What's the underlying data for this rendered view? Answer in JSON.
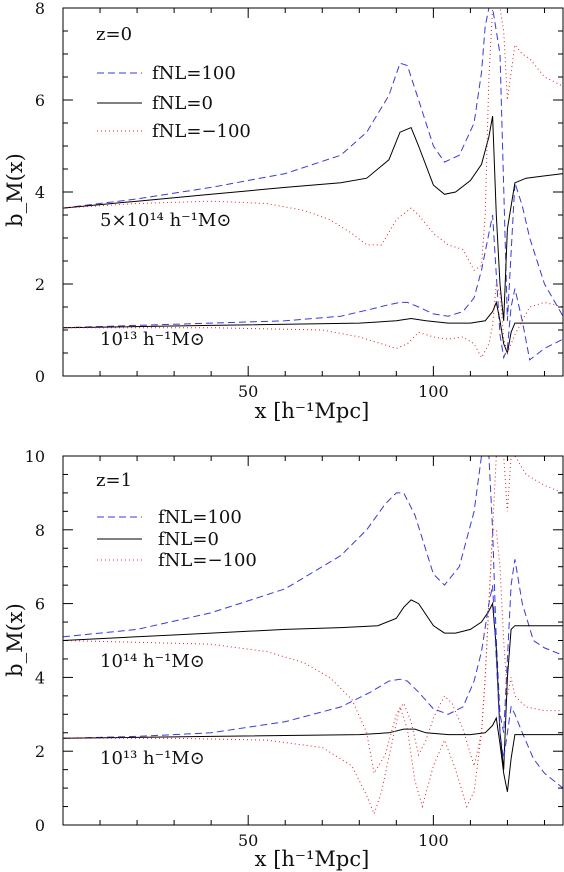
{
  "colors": {
    "fNL_pos100": "#3a3ad8",
    "fNL_0": "#000000",
    "fNL_neg100": "#e02020"
  },
  "chart_data": [
    {
      "type": "line",
      "panel_label": "z=0",
      "xlabel": "x [h⁻¹Mpc]",
      "ylabel": "b_M(x)",
      "xlim": [
        0,
        135
      ],
      "ylim": [
        0,
        8
      ],
      "xticks": [
        50,
        100
      ],
      "yticks": [
        0,
        2,
        4,
        6,
        8
      ],
      "legend": [
        "fNL=100",
        "fNL=0",
        "fNL=−100"
      ],
      "mass_labels": [
        "5×10¹⁴ h⁻¹M⊙",
        "10¹³ h⁻¹M⊙"
      ],
      "series": [
        {
          "name": "fNL=100",
          "mass": "5×10¹⁴ h⁻¹M⊙",
          "style": "dashed",
          "x": [
            0,
            20,
            40,
            60,
            75,
            82,
            88,
            91,
            93,
            96,
            100,
            103,
            107,
            111,
            113,
            114,
            115,
            115.5,
            116,
            118,
            120,
            122,
            124,
            126,
            130,
            135
          ],
          "y": [
            3.65,
            3.85,
            4.1,
            4.4,
            4.8,
            5.3,
            6.1,
            6.8,
            6.75,
            6.0,
            5.0,
            4.65,
            4.8,
            5.5,
            6.6,
            7.6,
            8.0,
            8.0,
            8.0,
            7.0,
            1.2,
            4.2,
            3.7,
            3.0,
            2.0,
            1.3
          ]
        },
        {
          "name": "fNL=0",
          "mass": "5×10¹⁴ h⁻¹M⊙",
          "style": "solid",
          "x": [
            0,
            20,
            40,
            60,
            75,
            82,
            88,
            91,
            94,
            96,
            100,
            103,
            106,
            110,
            113,
            115,
            116,
            117,
            118,
            119,
            120,
            122,
            125,
            130,
            135
          ],
          "y": [
            3.65,
            3.8,
            3.95,
            4.1,
            4.2,
            4.3,
            4.7,
            5.3,
            5.4,
            5.0,
            4.15,
            3.95,
            4.0,
            4.25,
            4.6,
            5.2,
            5.65,
            3.5,
            2.0,
            1.2,
            3.2,
            4.2,
            4.3,
            4.35,
            4.4
          ]
        },
        {
          "name": "fNL=−100",
          "mass": "5×10¹⁴ h⁻¹M⊙",
          "style": "dotted",
          "x": [
            0,
            20,
            40,
            55,
            65,
            72,
            78,
            82,
            86,
            90,
            94,
            96,
            100,
            104,
            108,
            111,
            113,
            114,
            115,
            116,
            117,
            118,
            119,
            120,
            122,
            124,
            126,
            130,
            135
          ],
          "y": [
            3.65,
            3.75,
            3.8,
            3.75,
            3.6,
            3.4,
            3.1,
            2.85,
            2.85,
            3.4,
            3.65,
            3.5,
            3.1,
            2.85,
            2.75,
            2.3,
            2.4,
            3.5,
            6.5,
            8.0,
            8.0,
            8.0,
            7.5,
            6.0,
            7.2,
            7.0,
            6.9,
            6.5,
            6.3
          ]
        },
        {
          "name": "fNL=100",
          "mass": "10¹³ h⁻¹M⊙",
          "style": "dashed",
          "x": [
            0,
            20,
            40,
            60,
            75,
            83,
            88,
            91,
            93,
            96,
            100,
            104,
            108,
            111,
            113,
            115,
            116,
            117,
            118,
            119,
            120,
            121,
            122,
            124,
            126,
            130,
            135
          ],
          "y": [
            1.05,
            1.1,
            1.15,
            1.2,
            1.3,
            1.45,
            1.55,
            1.6,
            1.6,
            1.5,
            1.35,
            1.3,
            1.4,
            1.7,
            2.3,
            3.1,
            3.5,
            2.2,
            0.9,
            0.4,
            0.6,
            1.5,
            1.9,
            1.2,
            0.35,
            0.6,
            0.8
          ]
        },
        {
          "name": "fNL=0",
          "mass": "10¹³ h⁻¹M⊙",
          "style": "solid",
          "x": [
            0,
            40,
            80,
            90,
            94,
            98,
            104,
            110,
            114,
            116,
            117,
            118,
            119,
            120,
            121,
            122,
            125,
            130,
            135
          ],
          "y": [
            1.05,
            1.1,
            1.15,
            1.2,
            1.25,
            1.2,
            1.15,
            1.15,
            1.2,
            1.4,
            1.6,
            1.2,
            0.7,
            0.5,
            0.95,
            1.15,
            1.15,
            1.15,
            1.15
          ]
        },
        {
          "name": "fNL=−100",
          "mass": "10¹³ h⁻¹M⊙",
          "style": "dotted",
          "x": [
            0,
            40,
            70,
            80,
            86,
            90,
            93,
            96,
            100,
            104,
            108,
            111,
            113,
            115,
            116,
            117,
            118,
            119,
            120,
            122,
            126,
            130,
            135
          ],
          "y": [
            1.05,
            1.05,
            1.0,
            0.85,
            0.7,
            0.6,
            0.7,
            0.95,
            0.85,
            0.8,
            0.85,
            0.7,
            0.4,
            0.7,
            1.1,
            2.0,
            1.8,
            0.8,
            0.5,
            0.9,
            1.5,
            1.6,
            1.5
          ]
        }
      ]
    },
    {
      "type": "line",
      "panel_label": "z=1",
      "xlabel": "x [h⁻¹Mpc]",
      "ylabel": "b_M(x)",
      "xlim": [
        0,
        135
      ],
      "ylim": [
        0,
        10
      ],
      "xticks": [
        50,
        100
      ],
      "yticks": [
        0,
        2,
        4,
        6,
        8,
        10
      ],
      "legend": [
        "fNL=100",
        "fNL=0",
        "fNL=−100"
      ],
      "mass_labels": [
        "10¹⁴ h⁻¹M⊙",
        "10¹³ h⁻¹M⊙"
      ],
      "series": [
        {
          "name": "fNL=100",
          "mass": "10¹⁴ h⁻¹M⊙",
          "style": "dashed",
          "x": [
            0,
            20,
            40,
            60,
            75,
            82,
            87,
            90,
            92,
            95,
            100,
            103,
            107,
            111,
            113,
            115,
            116,
            117,
            118,
            119,
            120,
            121,
            122,
            124,
            127,
            130,
            135
          ],
          "y": [
            5.1,
            5.3,
            5.75,
            6.4,
            7.3,
            8.0,
            8.7,
            9.0,
            9.0,
            8.4,
            6.8,
            6.5,
            7.0,
            8.5,
            10.0,
            10.0,
            8.0,
            5.0,
            3.0,
            2.5,
            4.5,
            6.5,
            7.2,
            6.0,
            5.0,
            4.8,
            4.6
          ]
        },
        {
          "name": "fNL=0",
          "mass": "10¹⁴ h⁻¹M⊙",
          "style": "solid",
          "x": [
            0,
            20,
            40,
            60,
            75,
            85,
            90,
            92,
            94,
            96,
            100,
            103,
            106,
            110,
            113,
            115,
            116,
            117,
            118,
            119,
            120,
            121,
            122,
            125,
            130,
            135
          ],
          "y": [
            5.0,
            5.1,
            5.2,
            5.3,
            5.35,
            5.4,
            5.6,
            5.9,
            6.1,
            6.0,
            5.4,
            5.2,
            5.2,
            5.3,
            5.5,
            5.8,
            6.0,
            4.8,
            2.5,
            1.5,
            4.0,
            5.3,
            5.4,
            5.4,
            5.4,
            5.4
          ]
        },
        {
          "name": "fNL=−100",
          "mass": "10¹⁴ h⁻¹M⊙",
          "style": "dotted",
          "x": [
            0,
            20,
            40,
            55,
            65,
            72,
            78,
            82,
            84,
            87,
            90,
            92,
            94,
            96,
            98,
            100,
            103,
            105,
            108,
            111,
            113,
            114,
            115,
            116,
            117,
            118,
            119,
            120,
            121,
            122,
            125,
            130,
            135
          ],
          "y": [
            5.0,
            4.95,
            4.9,
            4.7,
            4.4,
            4.0,
            3.4,
            2.5,
            1.4,
            1.9,
            3.0,
            3.3,
            2.8,
            1.9,
            2.3,
            2.9,
            3.5,
            3.3,
            2.6,
            1.6,
            2.5,
            4.0,
            6.0,
            8.0,
            10.0,
            10.0,
            10.0,
            8.5,
            10.0,
            10.0,
            9.5,
            9.2,
            9.0
          ]
        },
        {
          "name": "fNL=100",
          "mass": "10¹³ h⁻¹M⊙",
          "style": "dashed",
          "x": [
            0,
            20,
            40,
            60,
            75,
            83,
            88,
            91,
            93,
            96,
            100,
            104,
            108,
            111,
            113,
            115,
            116,
            117,
            118,
            119,
            120,
            121,
            122,
            124,
            127,
            130,
            135
          ],
          "y": [
            2.35,
            2.4,
            2.5,
            2.8,
            3.2,
            3.6,
            3.9,
            3.95,
            3.9,
            3.6,
            3.15,
            3.0,
            3.2,
            3.9,
            4.7,
            6.0,
            6.5,
            4.5,
            2.5,
            1.8,
            2.5,
            3.2,
            3.0,
            2.5,
            1.8,
            1.4,
            1.0
          ]
        },
        {
          "name": "fNL=0",
          "mass": "10¹³ h⁻¹M⊙",
          "style": "solid",
          "x": [
            0,
            40,
            80,
            88,
            92,
            95,
            98,
            104,
            110,
            114,
            116,
            117,
            118,
            119,
            120,
            121,
            122,
            125,
            130,
            135
          ],
          "y": [
            2.35,
            2.4,
            2.45,
            2.5,
            2.6,
            2.6,
            2.5,
            2.45,
            2.45,
            2.5,
            2.7,
            2.9,
            2.2,
            1.4,
            0.9,
            1.8,
            2.45,
            2.45,
            2.45,
            2.45
          ]
        },
        {
          "name": "fNL=−100",
          "mass": "10¹³ h⁻¹M⊙",
          "style": "dotted",
          "x": [
            0,
            30,
            55,
            70,
            78,
            82,
            84,
            86,
            89,
            91,
            93,
            95,
            97,
            100,
            103,
            106,
            109,
            111,
            113,
            114,
            115,
            116,
            117,
            118,
            119,
            120,
            121,
            122,
            125,
            130,
            135
          ],
          "y": [
            2.35,
            2.35,
            2.3,
            2.1,
            1.6,
            0.8,
            0.3,
            0.9,
            2.3,
            3.2,
            2.6,
            1.2,
            0.5,
            1.6,
            2.3,
            1.5,
            0.5,
            0.9,
            2.5,
            4.0,
            6.0,
            8.0,
            8.0,
            7.0,
            5.0,
            3.5,
            4.0,
            3.5,
            3.2,
            3.1,
            3.1
          ]
        }
      ]
    }
  ]
}
